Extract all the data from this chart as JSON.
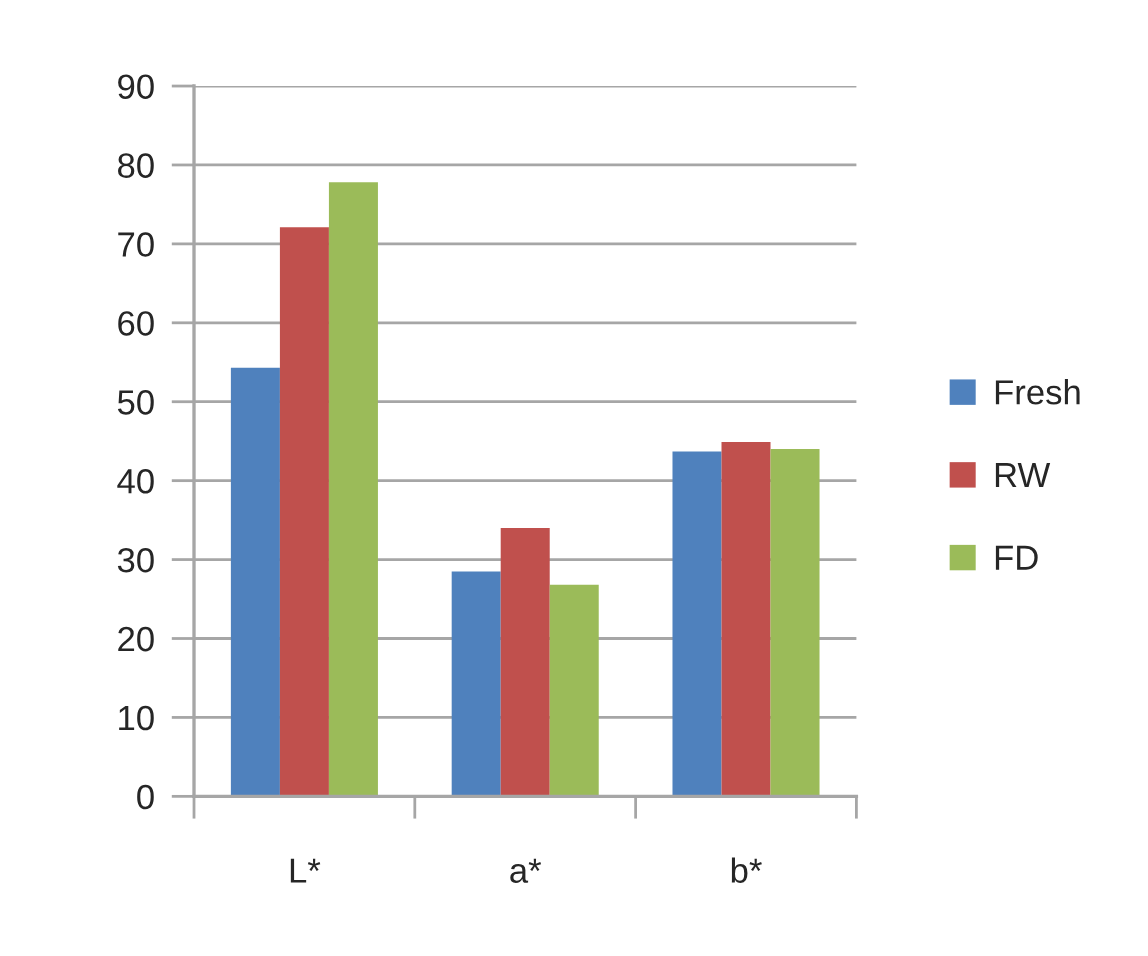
{
  "chart_data": {
    "type": "bar",
    "categories": [
      "L*",
      "a*",
      "b*"
    ],
    "series": [
      {
        "name": "Fresh",
        "color": "#4f81bd",
        "values": [
          54.3,
          28.5,
          43.7
        ]
      },
      {
        "name": "RW",
        "color": "#c0504d",
        "values": [
          72.1,
          34.0,
          44.9
        ]
      },
      {
        "name": "FD",
        "color": "#9bbb59",
        "values": [
          77.8,
          26.8,
          44.0
        ]
      }
    ],
    "ylim": [
      0,
      90
    ],
    "yticks": [
      0,
      10,
      20,
      30,
      40,
      50,
      60,
      70,
      80,
      90
    ],
    "grid": "y",
    "legend": "right"
  }
}
